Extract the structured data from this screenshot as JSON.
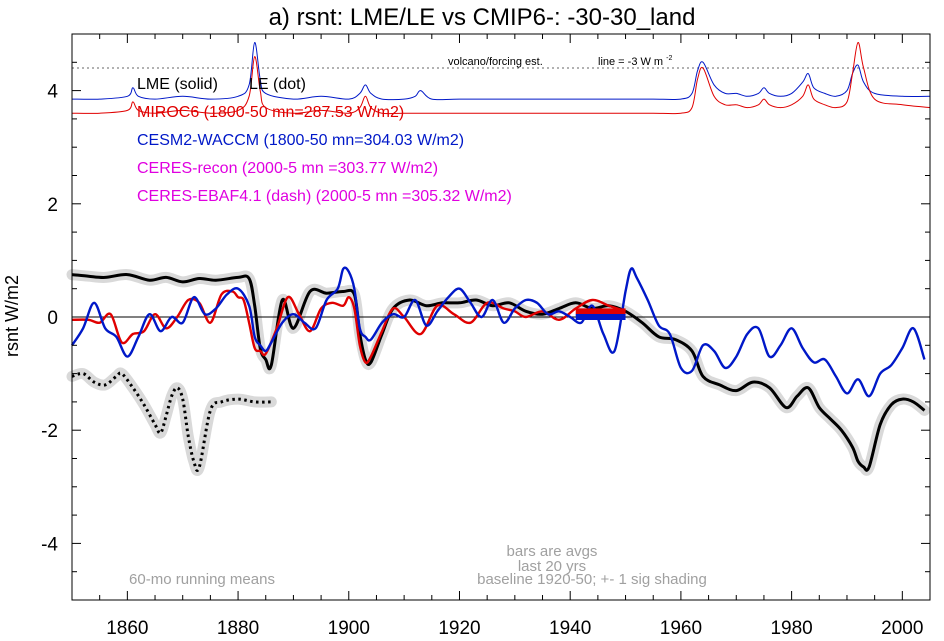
{
  "chart_data": {
    "type": "line",
    "title": "a) rsnt: LME/LE vs CMIP6-: -30-30_land",
    "xlabel": "",
    "ylabel": "rsnt W/m2",
    "xlim": [
      1850,
      2005
    ],
    "ylim": [
      -5,
      5
    ],
    "x_ticks": [
      "1860",
      "1880",
      "1900",
      "1920",
      "1940",
      "1960",
      "1980",
      "2000"
    ],
    "y_ticks": [
      "-4",
      "-2",
      "0",
      "2",
      "4"
    ],
    "grid": false,
    "legend": [
      {
        "label": "LME (solid)",
        "color": "#000000"
      },
      {
        "label": "LE (dot)",
        "color": "#000000"
      },
      {
        "label": "MIROC6 (1800-50 mn=287.53 W/m2)",
        "color": "#e00000"
      },
      {
        "label": "CESM2-WACCM (1800-50 mn=304.03 W/m2)",
        "color": "#0018c8"
      },
      {
        "label": "CERES-recon (2000-5 mn =303.77 W/m2)",
        "color": "#e000e0"
      },
      {
        "label": "CERES-EBAF4.1 (dash) (2000-5 mn =305.32 W/m2)",
        "color": "#e000e0"
      }
    ],
    "legend_position": "top-left",
    "annotations": {
      "volcano": "volcano/forcing est.",
      "line_note": "line = -3 W m",
      "line_note_sup": "-2",
      "bars1": "bars are avgs",
      "bars2": "last 20 yrs",
      "baseline": "baseline 1920-50; +- 1 sig shading",
      "running": "60-mo running means"
    },
    "reference_lines": [
      {
        "y": 0,
        "style": "solid"
      },
      {
        "y": 4.4,
        "style": "dotted"
      }
    ],
    "series": [
      {
        "name": "LME (solid)",
        "color": "#000000",
        "style": "solid",
        "shaded": true,
        "x": [
          1850,
          1853,
          1856,
          1860,
          1864,
          1867,
          1870,
          1873,
          1876,
          1880,
          1882,
          1883,
          1884,
          1885,
          1886,
          1888,
          1890,
          1893,
          1896,
          1899,
          1901,
          1902,
          1903,
          1904,
          1906,
          1908,
          1911,
          1914,
          1917,
          1920,
          1923,
          1926,
          1929,
          1932,
          1935,
          1938,
          1941,
          1944,
          1947,
          1950,
          1953,
          1956,
          1959,
          1962,
          1964,
          1967,
          1970,
          1973,
          1976,
          1979,
          1981,
          1983,
          1985,
          1987,
          1989,
          1991,
          1992,
          1993,
          1994,
          1996,
          1998,
          2000,
          2002,
          2004
        ],
        "y": [
          0.75,
          0.72,
          0.7,
          0.75,
          0.65,
          0.7,
          0.62,
          0.68,
          0.65,
          0.7,
          0.68,
          0.2,
          -0.55,
          -0.75,
          -0.85,
          0.3,
          -0.2,
          0.45,
          0.42,
          0.45,
          0.4,
          -0.3,
          -0.75,
          -0.8,
          -0.3,
          0.15,
          0.3,
          0.2,
          0.25,
          0.25,
          0.3,
          0.2,
          0.25,
          0.1,
          0.05,
          0.15,
          0.25,
          0.15,
          0.2,
          0.1,
          -0.1,
          -0.35,
          -0.4,
          -0.6,
          -1.05,
          -1.2,
          -1.3,
          -1.15,
          -1.25,
          -1.6,
          -1.4,
          -1.25,
          -1.6,
          -1.8,
          -2.0,
          -2.3,
          -2.55,
          -2.65,
          -2.65,
          -1.9,
          -1.55,
          -1.45,
          -1.5,
          -1.65
        ]
      },
      {
        "name": "LE (dot)",
        "color": "#000000",
        "style": "dotted",
        "shaded": true,
        "x": [
          1850,
          1852,
          1854,
          1856,
          1858,
          1859,
          1861,
          1863,
          1865,
          1866,
          1867,
          1868,
          1869,
          1870,
          1871,
          1872,
          1873,
          1875,
          1877,
          1880,
          1883,
          1886
        ],
        "y": [
          -1.05,
          -1.0,
          -1.15,
          -1.2,
          -1.05,
          -1.0,
          -1.25,
          -1.55,
          -1.9,
          -2.05,
          -1.75,
          -1.4,
          -1.25,
          -1.45,
          -2.1,
          -2.55,
          -2.65,
          -1.65,
          -1.5,
          -1.45,
          -1.5,
          -1.5
        ]
      },
      {
        "name": "MIROC6 (1800-50 mn=287.53 W/m2)",
        "color": "#e00000",
        "style": "solid",
        "x": [
          1850,
          1853,
          1855,
          1857,
          1859,
          1861,
          1863,
          1865,
          1867,
          1869,
          1871,
          1873,
          1875,
          1877,
          1879,
          1880,
          1881,
          1882,
          1883,
          1884,
          1885,
          1887,
          1889,
          1891,
          1893,
          1895,
          1897,
          1899,
          1900,
          1901,
          1902,
          1903,
          1904,
          1906,
          1908,
          1910,
          1913,
          1916,
          1919,
          1922,
          1925,
          1928,
          1930,
          1932,
          1935,
          1938,
          1941,
          1944,
          1947,
          1950
        ],
        "y": [
          -0.05,
          -0.05,
          -0.1,
          0.05,
          -0.45,
          -0.3,
          -0.25,
          0.05,
          -0.2,
          0.0,
          0.3,
          0.25,
          -0.1,
          0.4,
          0.45,
          0.35,
          0.3,
          -0.1,
          -0.55,
          -0.6,
          -0.65,
          -0.2,
          0.35,
          0.05,
          -0.25,
          0.15,
          0.25,
          0.2,
          0.35,
          0.15,
          -0.5,
          -0.8,
          -0.7,
          -0.25,
          0.15,
          0.0,
          -0.3,
          0.2,
          0.05,
          -0.1,
          0.25,
          0.15,
          0.1,
          0.0,
          0.1,
          -0.05,
          0.15,
          0.3,
          0.2,
          0.1
        ]
      },
      {
        "name": "CESM2-WACCM (1800-50 mn=304.03 W/m2)",
        "color": "#0018c8",
        "style": "solid",
        "x": [
          1850,
          1852,
          1854,
          1856,
          1858,
          1860,
          1862,
          1864,
          1866,
          1868,
          1870,
          1872,
          1874,
          1876,
          1878,
          1880,
          1882,
          1883,
          1884,
          1885,
          1886,
          1888,
          1890,
          1892,
          1894,
          1896,
          1898,
          1899,
          1900,
          1901,
          1902,
          1903,
          1904,
          1906,
          1908,
          1910,
          1912,
          1914,
          1916,
          1918,
          1920,
          1922,
          1924,
          1926,
          1928,
          1930,
          1932,
          1934,
          1936,
          1938,
          1940,
          1942,
          1944,
          1946,
          1948,
          1950,
          1951,
          1952,
          1954,
          1956,
          1958,
          1960,
          1962,
          1964,
          1966,
          1968,
          1970,
          1972,
          1974,
          1976,
          1978,
          1980,
          1982,
          1984,
          1986,
          1988,
          1990,
          1992,
          1994,
          1996,
          1998,
          2000,
          2002,
          2004
        ],
        "y": [
          -0.5,
          -0.2,
          0.25,
          -0.2,
          -0.35,
          -0.7,
          -0.35,
          0.05,
          -0.25,
          0.0,
          -0.1,
          0.35,
          0.05,
          0.15,
          0.4,
          0.5,
          0.2,
          -0.35,
          -0.5,
          -0.6,
          -0.45,
          -0.1,
          0.05,
          -0.1,
          -0.2,
          0.3,
          0.5,
          0.85,
          0.8,
          0.5,
          -0.2,
          -0.35,
          -0.4,
          -0.1,
          0.05,
          0.0,
          0.3,
          -0.15,
          0.1,
          0.35,
          0.5,
          0.25,
          0.0,
          0.3,
          -0.1,
          0.15,
          0.3,
          0.25,
          0.05,
          0.1,
          0.0,
          -0.1,
          0.2,
          -0.3,
          -0.6,
          0.45,
          0.85,
          0.7,
          0.3,
          -0.15,
          -0.3,
          -0.9,
          -0.95,
          -0.5,
          -0.6,
          -0.9,
          -0.7,
          -0.3,
          -0.2,
          -0.7,
          -0.5,
          -0.2,
          -0.55,
          -0.8,
          -0.75,
          -1.05,
          -1.35,
          -1.1,
          -1.4,
          -1.0,
          -0.85,
          -0.55,
          -0.2,
          -0.75
        ]
      },
      {
        "name": "CESM2-WACCM forcing est.",
        "color": "#0018c8",
        "style": "solid",
        "x": [
          1850,
          1855,
          1860,
          1861,
          1862,
          1865,
          1870,
          1875,
          1880,
          1882,
          1883,
          1884,
          1885,
          1890,
          1895,
          1900,
          1902,
          1903,
          1904,
          1906,
          1910,
          1912,
          1913,
          1915,
          1920,
          1930,
          1940,
          1950,
          1955,
          1960,
          1962,
          1963,
          1964,
          1966,
          1968,
          1970,
          1972,
          1974,
          1975,
          1976,
          1978,
          1980,
          1982,
          1983,
          1984,
          1986,
          1988,
          1990,
          1991,
          1992,
          1993,
          1995,
          2000,
          2005
        ],
        "y": [
          3.85,
          3.85,
          3.9,
          4.05,
          3.9,
          3.85,
          3.9,
          3.85,
          3.9,
          4.1,
          4.85,
          4.2,
          3.95,
          3.85,
          3.9,
          3.85,
          3.95,
          4.1,
          3.95,
          3.85,
          3.85,
          3.9,
          4.0,
          3.85,
          3.85,
          3.85,
          3.85,
          3.85,
          3.85,
          3.85,
          3.95,
          4.35,
          4.5,
          4.1,
          3.95,
          3.95,
          3.9,
          3.95,
          4.05,
          3.95,
          3.9,
          3.95,
          4.15,
          4.3,
          4.05,
          3.95,
          3.9,
          4.0,
          4.3,
          4.45,
          4.15,
          3.95,
          3.9,
          3.9
        ]
      },
      {
        "name": "MIROC6 forcing est.",
        "color": "#e00000",
        "style": "solid",
        "x": [
          1850,
          1855,
          1860,
          1861,
          1862,
          1865,
          1870,
          1875,
          1880,
          1882,
          1883,
          1884,
          1885,
          1890,
          1895,
          1900,
          1902,
          1903,
          1904,
          1906,
          1910,
          1920,
          1930,
          1940,
          1950,
          1955,
          1960,
          1962,
          1963,
          1964,
          1966,
          1968,
          1970,
          1972,
          1974,
          1975,
          1976,
          1978,
          1980,
          1982,
          1983,
          1984,
          1986,
          1988,
          1990,
          1991,
          1992,
          1993,
          1995,
          2000,
          2005
        ],
        "y": [
          3.6,
          3.6,
          3.65,
          3.8,
          3.65,
          3.6,
          3.65,
          3.6,
          3.65,
          3.9,
          4.6,
          4.0,
          3.7,
          3.6,
          3.65,
          3.6,
          3.7,
          3.9,
          3.7,
          3.6,
          3.6,
          3.6,
          3.6,
          3.6,
          3.6,
          3.6,
          3.6,
          3.7,
          4.2,
          4.4,
          3.9,
          3.75,
          3.75,
          3.7,
          3.75,
          3.85,
          3.75,
          3.7,
          3.75,
          3.9,
          4.1,
          3.85,
          3.75,
          3.7,
          3.8,
          4.3,
          4.85,
          4.4,
          3.85,
          3.75,
          3.7
        ]
      }
    ],
    "bars": [
      {
        "name": "MIROC6",
        "color": "#e00000",
        "x_start": 1941,
        "x_end": 1950,
        "y": 0.1
      },
      {
        "name": "CESM2-WACCM",
        "color": "#0018c8",
        "x_start": 1941,
        "x_end": 1950,
        "y": 0.0
      }
    ]
  }
}
